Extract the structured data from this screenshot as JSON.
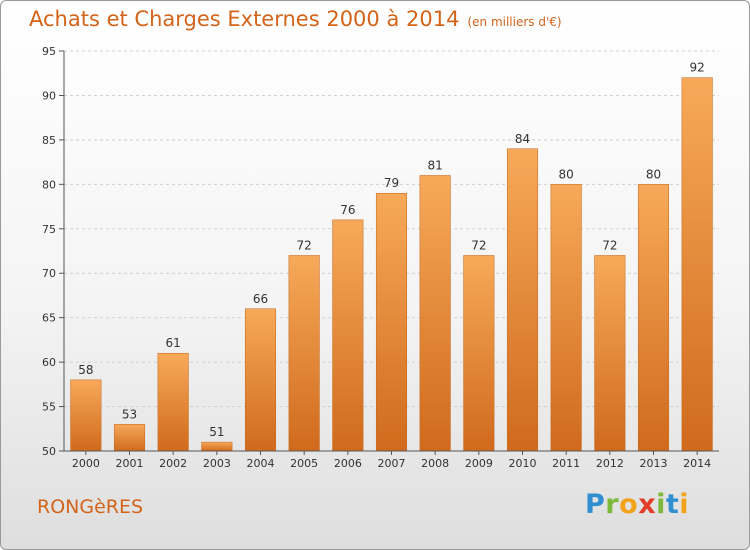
{
  "title": "Achats et Charges Externes 2000 à 2014",
  "unit_note": "(en milliers d'€)",
  "place": "RONGèRES",
  "brand": {
    "letters": [
      "P",
      "r",
      "o",
      "x",
      "i",
      "t",
      "i"
    ],
    "colors": [
      "#2f8fd1",
      "#7cb83a",
      "#f2a31b",
      "#e23c2a",
      "#7cb83a",
      "#2f8fd1",
      "#f2a31b"
    ]
  },
  "colors": {
    "accent": "#d3641a",
    "bar_light": "#f7a95a",
    "bar_dark": "#d06a1c"
  },
  "chart_data": {
    "type": "bar",
    "categories": [
      "2000",
      "2001",
      "2002",
      "2003",
      "2004",
      "2005",
      "2006",
      "2007",
      "2008",
      "2009",
      "2010",
      "2011",
      "2012",
      "2013",
      "2014"
    ],
    "values": [
      58,
      53,
      61,
      51,
      66,
      72,
      76,
      79,
      81,
      72,
      84,
      80,
      72,
      80,
      92
    ],
    "ylim": [
      50,
      95
    ],
    "yticks": [
      50,
      55,
      60,
      65,
      70,
      75,
      80,
      85,
      90,
      95
    ],
    "grid": true,
    "data_labels": true
  }
}
